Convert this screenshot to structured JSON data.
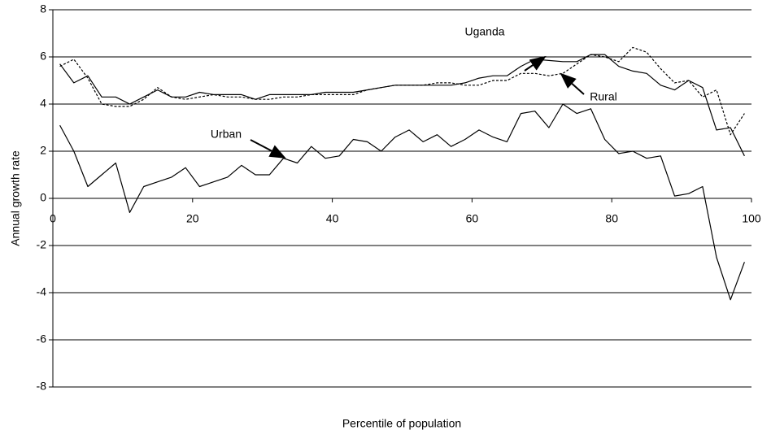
{
  "chart_data": {
    "type": "line",
    "x_label": "Percentile of population",
    "y_label": "Annual growth rate",
    "x": [
      1,
      3,
      5,
      7,
      9,
      11,
      13,
      15,
      17,
      19,
      21,
      23,
      25,
      27,
      29,
      31,
      33,
      35,
      37,
      39,
      41,
      43,
      45,
      47,
      49,
      51,
      53,
      55,
      57,
      59,
      61,
      63,
      65,
      67,
      69,
      71,
      73,
      75,
      77,
      79,
      81,
      83,
      85,
      87,
      89,
      91,
      93,
      95,
      97,
      99
    ],
    "series": [
      {
        "name": "Uganda",
        "color": "#000000",
        "dash": false,
        "values": [
          5.7,
          4.9,
          5.2,
          4.3,
          4.3,
          4.0,
          4.3,
          4.6,
          4.3,
          4.3,
          4.5,
          4.4,
          4.4,
          4.4,
          4.2,
          4.4,
          4.4,
          4.4,
          4.4,
          4.5,
          4.5,
          4.5,
          4.6,
          4.7,
          4.8,
          4.8,
          4.8,
          4.8,
          4.8,
          4.9,
          5.1,
          5.2,
          5.2,
          5.6,
          5.9,
          5.85,
          5.8,
          5.8,
          6.1,
          6.1,
          5.6,
          5.4,
          5.3,
          4.8,
          4.6,
          5.0,
          4.7,
          2.9,
          3.0,
          1.8
        ]
      },
      {
        "name": "Rural",
        "color": "#000000",
        "dash": true,
        "values": [
          5.6,
          5.9,
          5.1,
          4.0,
          3.9,
          3.9,
          4.2,
          4.7,
          4.3,
          4.2,
          4.3,
          4.4,
          4.3,
          4.3,
          4.2,
          4.2,
          4.3,
          4.3,
          4.4,
          4.4,
          4.4,
          4.4,
          4.6,
          4.7,
          4.8,
          4.8,
          4.8,
          4.9,
          4.9,
          4.8,
          4.8,
          5.0,
          5.0,
          5.3,
          5.3,
          5.2,
          5.3,
          5.7,
          6.1,
          6.0,
          5.8,
          6.4,
          6.2,
          5.5,
          4.9,
          5.0,
          4.3,
          4.6,
          2.7,
          3.6
        ]
      },
      {
        "name": "Urban",
        "color": "#000000",
        "dash": false,
        "values": [
          3.1,
          2.0,
          0.5,
          1.0,
          1.5,
          -0.6,
          0.5,
          0.7,
          0.9,
          1.3,
          0.5,
          0.7,
          0.9,
          1.4,
          1.0,
          1.0,
          1.7,
          1.5,
          2.2,
          1.7,
          1.8,
          2.5,
          2.4,
          2.0,
          2.6,
          2.9,
          2.4,
          2.7,
          2.2,
          2.5,
          2.9,
          2.6,
          2.4,
          3.6,
          3.7,
          3.0,
          4.0,
          3.6,
          3.8,
          2.5,
          1.9,
          2.0,
          1.7,
          1.8,
          0.1,
          0.2,
          0.5,
          -2.5,
          -4.3,
          -2.7
        ]
      }
    ],
    "xlim": [
      0,
      100
    ],
    "xticks": [
      0,
      20,
      40,
      60,
      80,
      100
    ],
    "ylim": [
      -8,
      8
    ],
    "yticks": [
      8,
      6,
      4,
      2,
      0,
      -2,
      -4,
      -6,
      -8
    ],
    "grid": true
  }
}
